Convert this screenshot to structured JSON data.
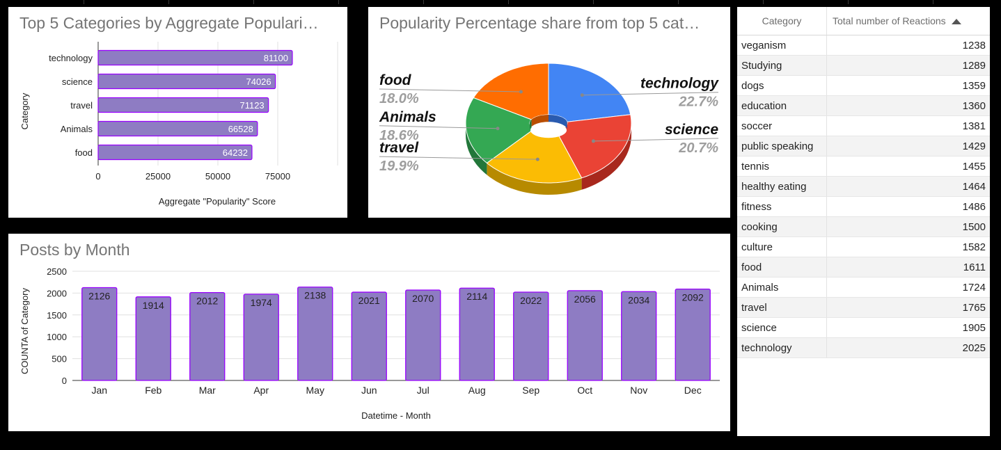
{
  "chart_data": [
    {
      "type": "bar",
      "title": "Top 5 Categories by Aggregate Populari…",
      "ylabel": "Category",
      "xlabel": "Aggregate \"Popularity\" Score",
      "categories": [
        "technology",
        "science",
        "travel",
        "Animals",
        "food"
      ],
      "values": [
        81100,
        74026,
        71123,
        66528,
        64232
      ],
      "xlim": [
        0,
        100000
      ],
      "xticks": [
        "0",
        "25000",
        "50000",
        "75000"
      ],
      "grid": true,
      "bar_color": "#8e7cc3",
      "border_color": "#9900ff"
    },
    {
      "type": "pie",
      "title": "Popularity Percentage share from top 5 cat…",
      "style": "3d-donut",
      "slices": [
        {
          "label": "technology",
          "pct": "22.7%",
          "value": 22.7,
          "color": "#4285f4",
          "side": "#2a5bb0"
        },
        {
          "label": "science",
          "pct": "20.7%",
          "value": 20.7,
          "color": "#ea4335",
          "side": "#a8281d"
        },
        {
          "label": "travel",
          "pct": "19.9%",
          "value": 19.9,
          "color": "#fbbc04",
          "side": "#b78a00"
        },
        {
          "label": "Animals",
          "pct": "18.6%",
          "value": 18.6,
          "color": "#34a853",
          "side": "#22773a"
        },
        {
          "label": "food",
          "pct": "18.0%",
          "value": 18.0,
          "color": "#ff6d01",
          "side": "#b94e00"
        }
      ]
    },
    {
      "type": "bar",
      "title": "Posts by Month",
      "xlabel": "Datetime - Month",
      "ylabel": "COUNTA of Category",
      "categories": [
        "Jan",
        "Feb",
        "Mar",
        "Apr",
        "May",
        "Jun",
        "Jul",
        "Aug",
        "Sep",
        "Oct",
        "Nov",
        "Dec"
      ],
      "values": [
        2126,
        1914,
        2012,
        1974,
        2138,
        2021,
        2070,
        2114,
        2022,
        2056,
        2034,
        2092
      ],
      "ylim": [
        0,
        2500
      ],
      "yticks": [
        "0",
        "500",
        "1000",
        "1500",
        "2000",
        "2500"
      ],
      "grid": true,
      "bar_color": "#8e7cc3",
      "border_color": "#9900ff"
    },
    {
      "type": "table",
      "columns": [
        "Category",
        "Total number of Reactions"
      ],
      "rows": [
        [
          "veganism",
          "1238"
        ],
        [
          "Studying",
          "1289"
        ],
        [
          "dogs",
          "1359"
        ],
        [
          "education",
          "1360"
        ],
        [
          "soccer",
          "1381"
        ],
        [
          "public speaking",
          "1429"
        ],
        [
          "tennis",
          "1455"
        ],
        [
          "healthy eating",
          "1464"
        ],
        [
          "fitness",
          "1486"
        ],
        [
          "cooking",
          "1500"
        ],
        [
          "culture",
          "1582"
        ],
        [
          "food",
          "1611"
        ],
        [
          "Animals",
          "1724"
        ],
        [
          "travel",
          "1765"
        ],
        [
          "science",
          "1905"
        ],
        [
          "technology",
          "2025"
        ]
      ],
      "sorted_column": "Total number of Reactions",
      "sort_direction": "ascending"
    }
  ]
}
